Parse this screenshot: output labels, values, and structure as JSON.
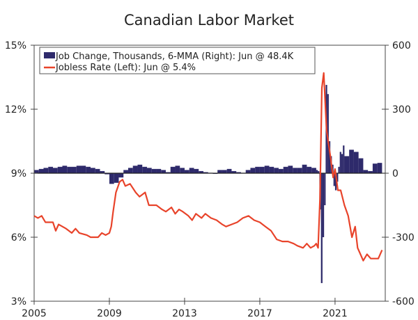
{
  "chart_data": {
    "type": "bar+line",
    "title": "Canadian Labor Market",
    "xlabel": "",
    "x_ticks": [
      "2005",
      "2009",
      "2013",
      "2017",
      "2021"
    ],
    "x_tick_values": [
      2005,
      2009,
      2013,
      2017,
      2021
    ],
    "xlim": [
      2005,
      2023.67
    ],
    "left_axis": {
      "ticks": [
        "3%",
        "6%",
        "9%",
        "12%",
        "15%"
      ],
      "tick_values": [
        3,
        6,
        9,
        12,
        15
      ],
      "ylim": [
        3,
        15
      ]
    },
    "right_axis": {
      "ticks": [
        "-600",
        "-300",
        "0",
        "300",
        "600"
      ],
      "tick_values": [
        -600,
        -300,
        0,
        300,
        600
      ],
      "ylim": [
        -600,
        600
      ]
    },
    "legend": {
      "placement": "top-left"
    },
    "series": [
      {
        "name": "Job Change, Thousands, 6-MMA (Right): Jun @ 48.4K",
        "type": "bar",
        "axis": "right",
        "color": "#2e2a6b",
        "points": [
          [
            2005.0,
            15
          ],
          [
            2005.25,
            20
          ],
          [
            2005.5,
            25
          ],
          [
            2005.75,
            30
          ],
          [
            2006.0,
            25
          ],
          [
            2006.25,
            30
          ],
          [
            2006.5,
            35
          ],
          [
            2006.75,
            30
          ],
          [
            2007.0,
            30
          ],
          [
            2007.25,
            35
          ],
          [
            2007.5,
            35
          ],
          [
            2007.75,
            30
          ],
          [
            2008.0,
            25
          ],
          [
            2008.25,
            20
          ],
          [
            2008.5,
            10
          ],
          [
            2008.75,
            -5
          ],
          [
            2009.0,
            -50
          ],
          [
            2009.25,
            -45
          ],
          [
            2009.5,
            -20
          ],
          [
            2009.75,
            15
          ],
          [
            2010.0,
            25
          ],
          [
            2010.25,
            35
          ],
          [
            2010.5,
            40
          ],
          [
            2010.75,
            30
          ],
          [
            2011.0,
            25
          ],
          [
            2011.25,
            20
          ],
          [
            2011.5,
            20
          ],
          [
            2011.75,
            15
          ],
          [
            2012.0,
            5
          ],
          [
            2012.25,
            30
          ],
          [
            2012.5,
            35
          ],
          [
            2012.75,
            25
          ],
          [
            2013.0,
            15
          ],
          [
            2013.25,
            25
          ],
          [
            2013.5,
            20
          ],
          [
            2013.75,
            10
          ],
          [
            2014.0,
            5
          ],
          [
            2014.25,
            2
          ],
          [
            2014.5,
            -3
          ],
          [
            2014.75,
            15
          ],
          [
            2015.0,
            15
          ],
          [
            2015.25,
            20
          ],
          [
            2015.5,
            10
          ],
          [
            2015.75,
            5
          ],
          [
            2016.0,
            2
          ],
          [
            2016.25,
            15
          ],
          [
            2016.5,
            25
          ],
          [
            2016.75,
            30
          ],
          [
            2017.0,
            30
          ],
          [
            2017.25,
            35
          ],
          [
            2017.5,
            30
          ],
          [
            2017.75,
            25
          ],
          [
            2018.0,
            20
          ],
          [
            2018.25,
            30
          ],
          [
            2018.5,
            35
          ],
          [
            2018.75,
            25
          ],
          [
            2019.0,
            25
          ],
          [
            2019.25,
            40
          ],
          [
            2019.5,
            30
          ],
          [
            2019.75,
            25
          ],
          [
            2020.0,
            15
          ],
          [
            2020.083,
            10
          ],
          [
            2020.167,
            -170
          ],
          [
            2020.25,
            -515
          ],
          [
            2020.333,
            -300
          ],
          [
            2020.417,
            -150
          ],
          [
            2020.5,
            414
          ],
          [
            2020.583,
            371
          ],
          [
            2020.667,
            150
          ],
          [
            2020.75,
            80
          ],
          [
            2020.833,
            40
          ],
          [
            2020.917,
            -60
          ],
          [
            2021.0,
            -80
          ],
          [
            2021.083,
            -40
          ],
          [
            2021.167,
            30
          ],
          [
            2021.25,
            100
          ],
          [
            2021.333,
            90
          ],
          [
            2021.417,
            130
          ],
          [
            2021.5,
            80
          ],
          [
            2021.75,
            110
          ],
          [
            2022.0,
            100
          ],
          [
            2022.25,
            70
          ],
          [
            2022.5,
            15
          ],
          [
            2022.75,
            10
          ],
          [
            2023.0,
            45
          ],
          [
            2023.25,
            48.4
          ]
        ]
      },
      {
        "name": "Jobless Rate (Left): Jun @ 5.4%",
        "type": "line",
        "axis": "left",
        "color": "#e8432a",
        "points": [
          [
            2005.0,
            7.0
          ],
          [
            2005.2,
            6.9
          ],
          [
            2005.4,
            7.0
          ],
          [
            2005.6,
            6.7
          ],
          [
            2006.0,
            6.7
          ],
          [
            2006.15,
            6.3
          ],
          [
            2006.3,
            6.6
          ],
          [
            2006.7,
            6.4
          ],
          [
            2007.0,
            6.2
          ],
          [
            2007.2,
            6.4
          ],
          [
            2007.4,
            6.2
          ],
          [
            2007.8,
            6.1
          ],
          [
            2008.0,
            6.0
          ],
          [
            2008.4,
            6.0
          ],
          [
            2008.6,
            6.2
          ],
          [
            2008.8,
            6.1
          ],
          [
            2009.0,
            6.2
          ],
          [
            2009.1,
            6.5
          ],
          [
            2009.2,
            7.2
          ],
          [
            2009.35,
            8.1
          ],
          [
            2009.55,
            8.6
          ],
          [
            2009.7,
            8.7
          ],
          [
            2009.85,
            8.4
          ],
          [
            2010.1,
            8.5
          ],
          [
            2010.4,
            8.1
          ],
          [
            2010.6,
            7.9
          ],
          [
            2010.9,
            8.1
          ],
          [
            2011.1,
            7.5
          ],
          [
            2011.5,
            7.5
          ],
          [
            2011.8,
            7.3
          ],
          [
            2012.0,
            7.2
          ],
          [
            2012.3,
            7.4
          ],
          [
            2012.5,
            7.1
          ],
          [
            2012.7,
            7.3
          ],
          [
            2012.9,
            7.2
          ],
          [
            2013.2,
            7.0
          ],
          [
            2013.4,
            6.8
          ],
          [
            2013.6,
            7.1
          ],
          [
            2013.9,
            6.9
          ],
          [
            2014.1,
            7.1
          ],
          [
            2014.4,
            6.9
          ],
          [
            2014.7,
            6.8
          ],
          [
            2015.0,
            6.6
          ],
          [
            2015.2,
            6.5
          ],
          [
            2015.5,
            6.6
          ],
          [
            2015.8,
            6.7
          ],
          [
            2016.1,
            6.9
          ],
          [
            2016.4,
            7.0
          ],
          [
            2016.7,
            6.8
          ],
          [
            2017.0,
            6.7
          ],
          [
            2017.3,
            6.5
          ],
          [
            2017.6,
            6.3
          ],
          [
            2017.9,
            5.9
          ],
          [
            2018.2,
            5.8
          ],
          [
            2018.5,
            5.8
          ],
          [
            2018.8,
            5.7
          ],
          [
            2019.0,
            5.6
          ],
          [
            2019.3,
            5.5
          ],
          [
            2019.5,
            5.7
          ],
          [
            2019.7,
            5.5
          ],
          [
            2019.9,
            5.6
          ],
          [
            2020.0,
            5.7
          ],
          [
            2020.1,
            5.5
          ],
          [
            2020.2,
            7.8
          ],
          [
            2020.3,
            13.0
          ],
          [
            2020.4,
            13.7
          ],
          [
            2020.55,
            11.0
          ],
          [
            2020.75,
            9.8
          ],
          [
            2020.9,
            8.8
          ],
          [
            2021.0,
            9.2
          ],
          [
            2021.15,
            8.2
          ],
          [
            2021.3,
            8.2
          ],
          [
            2021.5,
            7.5
          ],
          [
            2021.7,
            7.0
          ],
          [
            2021.9,
            6.0
          ],
          [
            2022.07,
            6.5
          ],
          [
            2022.2,
            5.5
          ],
          [
            2022.35,
            5.2
          ],
          [
            2022.5,
            4.9
          ],
          [
            2022.7,
            5.2
          ],
          [
            2022.9,
            5.0
          ],
          [
            2023.3,
            5.0
          ],
          [
            2023.5,
            5.4
          ]
        ]
      }
    ]
  }
}
